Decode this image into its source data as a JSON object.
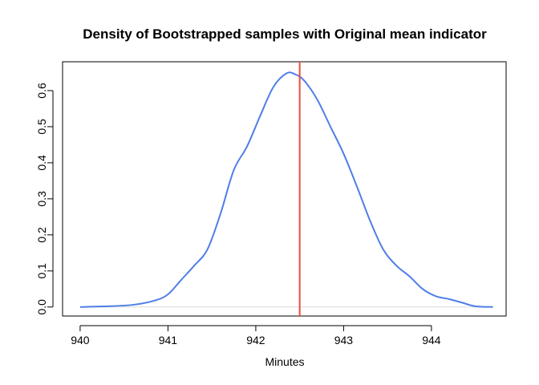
{
  "chart_data": {
    "type": "line",
    "title": "Density of Bootstrapped samples with Original mean indicator",
    "xlabel": "Minutes",
    "ylabel": "",
    "xlim": [
      939.8,
      944.85
    ],
    "ylim": [
      -0.025,
      0.68
    ],
    "x_ticks": [
      940,
      941,
      942,
      943,
      944
    ],
    "y_ticks": [
      0.0,
      0.1,
      0.2,
      0.3,
      0.4,
      0.5,
      0.6
    ],
    "x_tick_labels": [
      "940",
      "941",
      "942",
      "943",
      "944"
    ],
    "y_tick_labels": [
      "0.0",
      "0.1",
      "0.2",
      "0.3",
      "0.4",
      "0.5",
      "0.6"
    ],
    "grid": false,
    "legend": "none",
    "series": [
      {
        "color": "#4f7ee8",
        "x": [
          940.0,
          940.3,
          940.6,
          940.85,
          941.0,
          941.15,
          941.3,
          941.45,
          941.6,
          941.75,
          941.9,
          942.05,
          942.2,
          942.35,
          942.45,
          942.55,
          942.7,
          942.85,
          943.0,
          943.15,
          943.3,
          943.45,
          943.6,
          943.75,
          943.9,
          944.05,
          944.2,
          944.35,
          944.5,
          944.7
        ],
        "y": [
          0.0,
          0.002,
          0.006,
          0.018,
          0.035,
          0.075,
          0.115,
          0.16,
          0.26,
          0.38,
          0.445,
          0.53,
          0.61,
          0.648,
          0.645,
          0.628,
          0.575,
          0.5,
          0.425,
          0.335,
          0.24,
          0.16,
          0.115,
          0.085,
          0.05,
          0.03,
          0.022,
          0.012,
          0.002,
          0.0
        ]
      }
    ],
    "reference_line": {
      "x": 942.5,
      "color": "#f24b3b"
    },
    "baseline": {
      "y": 0,
      "color": "#d9d9d9"
    }
  }
}
